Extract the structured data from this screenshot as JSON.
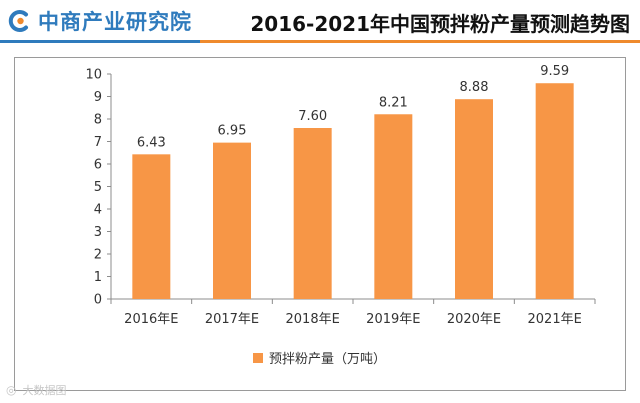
{
  "header": {
    "brand_name": "中商产业研究院",
    "title": "2016-2021年中国预拌粉产量预测趋势图"
  },
  "colors": {
    "brand_blue": "#2f7bbd",
    "accent_orange": "#ef8a2d",
    "bar_fill": "#f79646"
  },
  "watermark": {
    "icon": "weibo-icon",
    "text": "大数据图"
  },
  "chart_data": {
    "type": "bar",
    "title": "2016-2021年中国预拌粉产量预测趋势图",
    "xlabel": "",
    "ylabel": "",
    "categories": [
      "2016年E",
      "2017年E",
      "2018年E",
      "2019年E",
      "2020年E",
      "2021年E"
    ],
    "series": [
      {
        "name": "预拌粉产量（万吨）",
        "values": [
          6.43,
          6.95,
          7.6,
          8.21,
          8.88,
          9.59
        ]
      }
    ],
    "data_labels": [
      "6.43",
      "6.95",
      "7.60",
      "8.21",
      "8.88",
      "9.59"
    ],
    "ylim": [
      0,
      10
    ],
    "yticks": [
      0,
      1,
      2,
      3,
      4,
      5,
      6,
      7,
      8,
      9,
      10
    ],
    "grid": false,
    "legend_position": "bottom"
  }
}
